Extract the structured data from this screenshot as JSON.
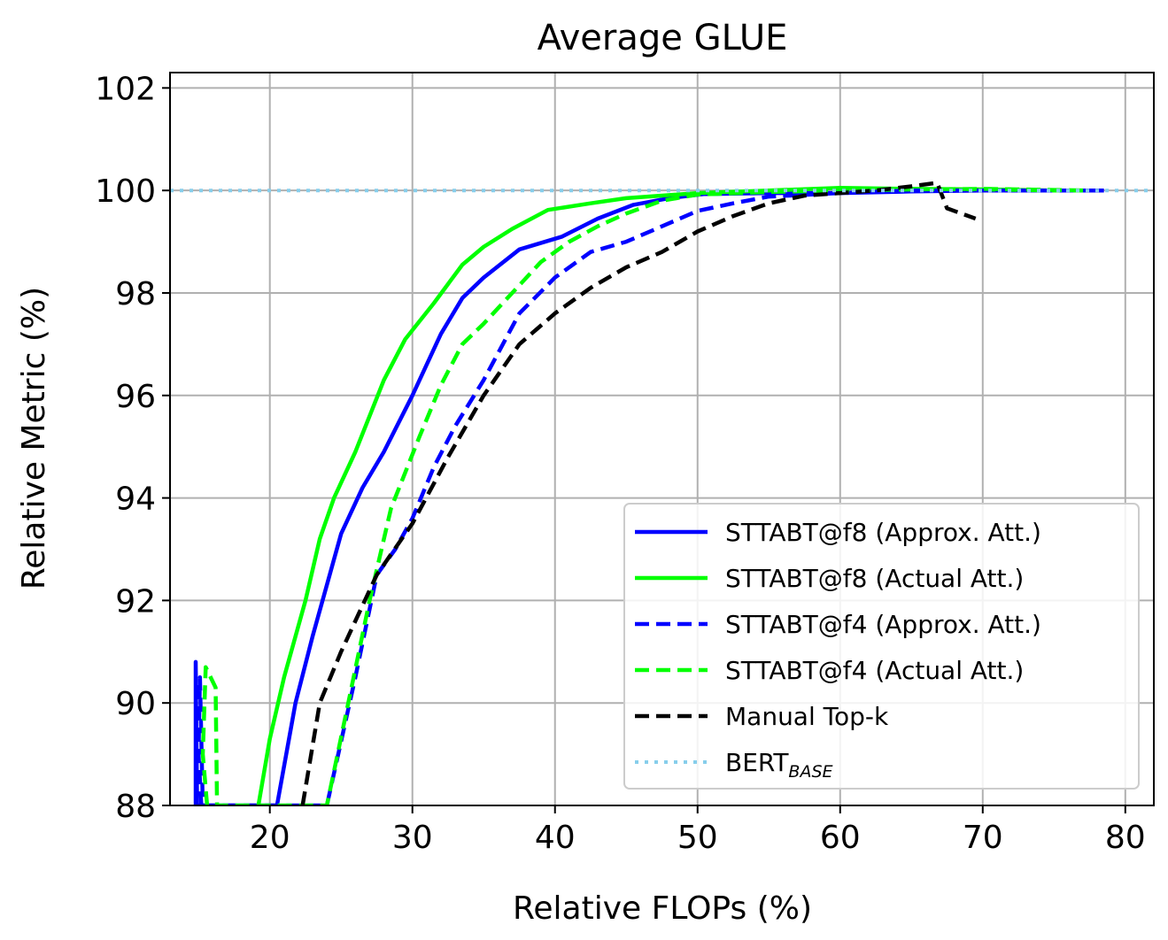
{
  "chart_data": {
    "type": "line",
    "title": "Average GLUE",
    "xlabel": "Relative FLOPs (%)",
    "ylabel": "Relative Metric (%)",
    "xlim": [
      13,
      82
    ],
    "ylim": [
      88,
      102.3
    ],
    "xticks": [
      20,
      30,
      40,
      50,
      60,
      70,
      80
    ],
    "yticks": [
      88,
      90,
      92,
      94,
      96,
      98,
      100,
      102
    ],
    "grid": true,
    "legend_position": "lower-right",
    "series": [
      {
        "name": "STTABT@f8 (Approx. Att.)",
        "color": "#0000ff",
        "dash": "solid",
        "points": [
          [
            14.8,
            88.0
          ],
          [
            14.8,
            90.8
          ],
          [
            14.9,
            88.0
          ],
          [
            20.5,
            88.0
          ],
          [
            21.8,
            90.0
          ],
          [
            23.0,
            91.3
          ],
          [
            25.0,
            93.3
          ],
          [
            26.5,
            94.2
          ],
          [
            28.0,
            94.9
          ],
          [
            30.0,
            96.0
          ],
          [
            32.0,
            97.2
          ],
          [
            33.5,
            97.9
          ],
          [
            35.0,
            98.3
          ],
          [
            37.5,
            98.85
          ],
          [
            40.5,
            99.1
          ],
          [
            43.0,
            99.45
          ],
          [
            45.5,
            99.72
          ],
          [
            48.0,
            99.85
          ],
          [
            50.5,
            99.93
          ],
          [
            55.0,
            99.95
          ],
          [
            60.0,
            99.95
          ],
          [
            65.0,
            99.98
          ],
          [
            70.0,
            100.0
          ],
          [
            75.0,
            100.0
          ],
          [
            78.5,
            100.0
          ]
        ]
      },
      {
        "name": "STTABT@f8 (Actual Att.)",
        "color": "#00ff00",
        "dash": "solid",
        "points": [
          [
            19.2,
            88.0
          ],
          [
            20.0,
            89.3
          ],
          [
            21.0,
            90.5
          ],
          [
            22.5,
            92.0
          ],
          [
            23.5,
            93.2
          ],
          [
            24.5,
            94.0
          ],
          [
            26.0,
            94.9
          ],
          [
            28.0,
            96.3
          ],
          [
            29.5,
            97.1
          ],
          [
            31.5,
            97.8
          ],
          [
            33.5,
            98.55
          ],
          [
            35.0,
            98.9
          ],
          [
            37.0,
            99.25
          ],
          [
            39.5,
            99.62
          ],
          [
            42.5,
            99.75
          ],
          [
            45.0,
            99.85
          ],
          [
            50.0,
            99.95
          ],
          [
            55.0,
            100.0
          ],
          [
            60.0,
            100.05
          ],
          [
            65.0,
            100.03
          ],
          [
            70.0,
            100.02
          ],
          [
            75.0,
            100.0
          ],
          [
            77.5,
            100.0
          ]
        ]
      },
      {
        "name": "STTABT@f4 (Approx. Att.)",
        "color": "#0000ff",
        "dash": "dashed",
        "points": [
          [
            15.2,
            88.0
          ],
          [
            15.0,
            89.0
          ],
          [
            15.1,
            90.5
          ],
          [
            15.3,
            88.0
          ],
          [
            24.0,
            88.0
          ],
          [
            26.0,
            90.5
          ],
          [
            27.5,
            92.5
          ],
          [
            28.8,
            93.0
          ],
          [
            30.0,
            93.6
          ],
          [
            31.5,
            94.6
          ],
          [
            33.0,
            95.4
          ],
          [
            35.0,
            96.3
          ],
          [
            37.5,
            97.6
          ],
          [
            40.0,
            98.3
          ],
          [
            42.5,
            98.8
          ],
          [
            45.0,
            99.0
          ],
          [
            47.5,
            99.3
          ],
          [
            50.0,
            99.6
          ],
          [
            52.5,
            99.75
          ],
          [
            55.0,
            99.88
          ],
          [
            60.0,
            99.95
          ],
          [
            65.0,
            100.0
          ],
          [
            70.0,
            100.0
          ],
          [
            75.0,
            100.0
          ],
          [
            78.5,
            100.0
          ]
        ]
      },
      {
        "name": "STTABT@f4 (Actual Att.)",
        "color": "#00ff00",
        "dash": "dashed",
        "points": [
          [
            15.6,
            88.0
          ],
          [
            15.3,
            89.0
          ],
          [
            15.5,
            90.7
          ],
          [
            16.2,
            90.3
          ],
          [
            16.3,
            88.0
          ],
          [
            24.0,
            88.0
          ],
          [
            25.5,
            90.0
          ],
          [
            27.0,
            92.0
          ],
          [
            28.5,
            93.8
          ],
          [
            30.5,
            95.2
          ],
          [
            32.0,
            96.2
          ],
          [
            33.5,
            97.0
          ],
          [
            35.0,
            97.4
          ],
          [
            37.0,
            98.0
          ],
          [
            39.0,
            98.6
          ],
          [
            41.0,
            99.0
          ],
          [
            43.0,
            99.3
          ],
          [
            45.0,
            99.55
          ],
          [
            47.5,
            99.8
          ],
          [
            50.0,
            99.92
          ],
          [
            55.0,
            99.97
          ],
          [
            60.0,
            100.0
          ],
          [
            65.0,
            100.02
          ],
          [
            70.0,
            100.03
          ],
          [
            77.5,
            100.0
          ]
        ]
      },
      {
        "name": "Manual Top-k",
        "color": "#000000",
        "dash": "dashed",
        "points": [
          [
            22.3,
            88.0
          ],
          [
            23.5,
            90.0
          ],
          [
            25.0,
            91.0
          ],
          [
            27.5,
            92.5
          ],
          [
            30.0,
            93.5
          ],
          [
            32.5,
            94.8
          ],
          [
            35.0,
            96.0
          ],
          [
            37.5,
            97.0
          ],
          [
            40.0,
            97.6
          ],
          [
            42.5,
            98.1
          ],
          [
            45.0,
            98.5
          ],
          [
            47.5,
            98.8
          ],
          [
            50.0,
            99.2
          ],
          [
            52.5,
            99.5
          ],
          [
            55.0,
            99.75
          ],
          [
            57.5,
            99.9
          ],
          [
            60.0,
            99.95
          ],
          [
            62.5,
            100.0
          ],
          [
            65.0,
            100.08
          ],
          [
            66.8,
            100.15
          ],
          [
            67.5,
            99.65
          ],
          [
            68.5,
            99.55
          ],
          [
            69.5,
            99.45
          ]
        ]
      },
      {
        "name": "BERT",
        "name_subscript": "BASE",
        "color": "#87ceeb",
        "dash": "dotted",
        "points": [
          [
            13.0,
            100.0
          ],
          [
            82.0,
            100.0
          ]
        ]
      }
    ]
  }
}
